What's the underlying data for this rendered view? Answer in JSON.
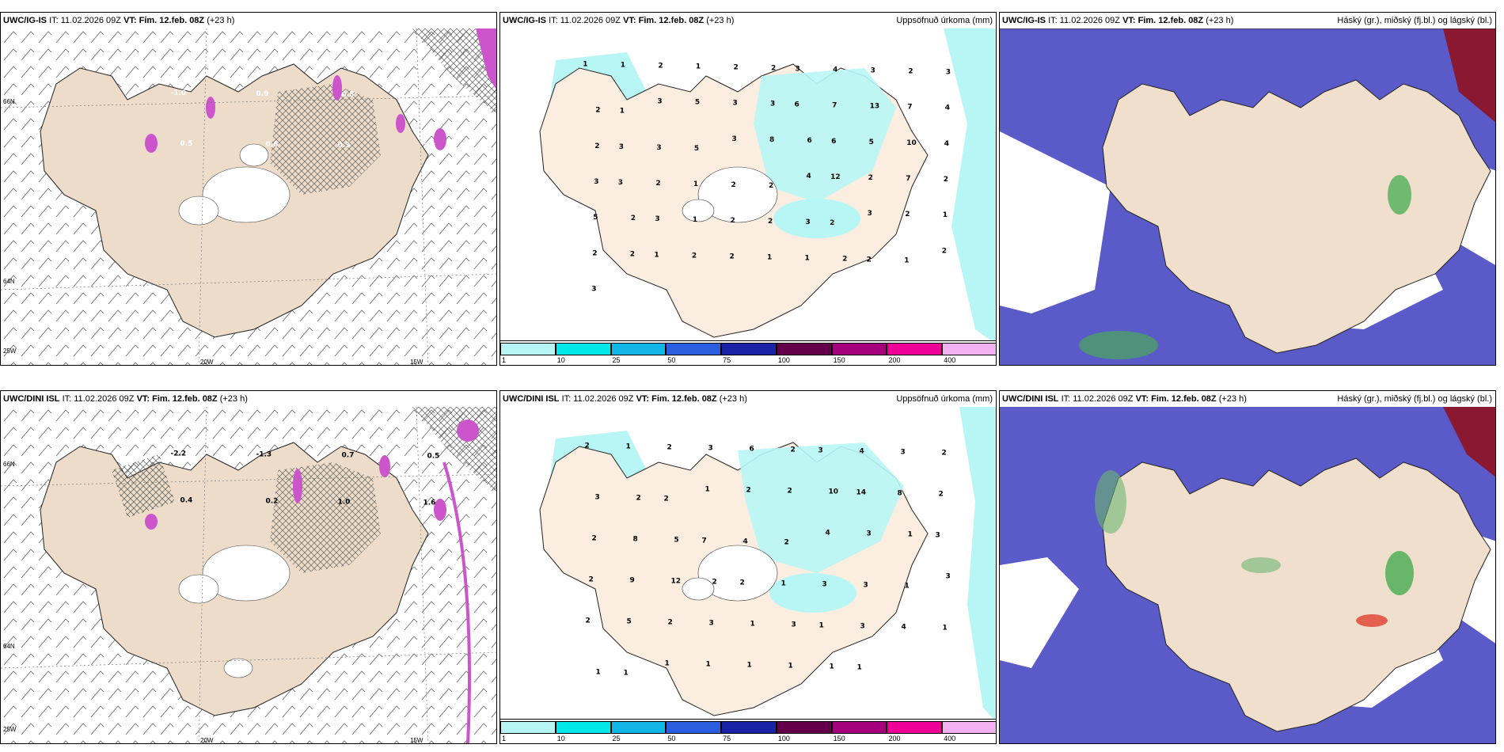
{
  "panels": [
    {
      "model": "UWC/IG-IS",
      "it_label": "IT:",
      "it": "11.02.2026 09Z",
      "vt_label": "VT: Fim. 12.feb. 08Z",
      "lead": "(+23 h)",
      "right_label": ""
    },
    {
      "model": "UWC/IG-IS",
      "it_label": "IT:",
      "it": "11.02.2026 09Z",
      "vt_label": "VT: Fim. 12.feb. 08Z",
      "lead": "(+23 h)",
      "right_label": "Uppsöfnuð úrkoma (mm)"
    },
    {
      "model": "UWC/IG-IS",
      "it_label": "IT:",
      "it": "11.02.2026 09Z",
      "vt_label": "VT: Fim. 12.feb. 08Z",
      "lead": "(+23 h)",
      "right_label": "Háský (gr.), miðský (fj.bl.) og lágský (bl.)"
    },
    {
      "model": "UWC/DINI ISL",
      "it_label": "IT:",
      "it": "11.02.2026 09Z",
      "vt_label": "VT: Fim. 12.feb. 08Z",
      "lead": "(+23 h)",
      "right_label": ""
    },
    {
      "model": "UWC/DINI ISL",
      "it_label": "IT:",
      "it": "11.02.2026 09Z",
      "vt_label": "VT: Fim. 12.feb. 08Z",
      "lead": "(+23 h)",
      "right_label": "Uppsöfnuð úrkoma (mm)"
    },
    {
      "model": "UWC/DINI ISL",
      "it_label": "IT:",
      "it": "11.02.2026 09Z",
      "vt_label": "VT: Fim. 12.feb. 08Z",
      "lead": "(+23 h)",
      "right_label": "Háský (gr.), miðský (fj.bl.) og lágský (bl.)"
    }
  ],
  "axes": {
    "lat_66": "66N",
    "lat_64": "64N",
    "lon_25": "25W",
    "lon_20": "20W",
    "lon_15": "15W"
  },
  "colorbar": {
    "ticks": [
      "1",
      "10",
      "25",
      "50",
      "75",
      "100",
      "150",
      "200",
      "400"
    ],
    "colors": [
      "#b8f6f6",
      "#00e8e8",
      "#12b6e6",
      "#2b5fe0",
      "#1a23a8",
      "#64004a",
      "#a5007c",
      "#ee0099",
      "#f2b2f2"
    ]
  },
  "wind_values_top": [
    "-1.0",
    "0.9",
    "0.5",
    "0.4",
    "0.5",
    "0.6",
    "0.3",
    "1.6"
  ],
  "wind_values_bottom": [
    "-2.2",
    "-1.3",
    "0.7",
    "0.5",
    "0.4",
    "0.2",
    "1.0",
    "1.6"
  ],
  "precip_labels_top": [
    "1",
    "1",
    "2",
    "1",
    "2",
    "2",
    "3",
    "4",
    "3",
    "2",
    "3",
    "2",
    "1",
    "3",
    "5",
    "3",
    "3",
    "6",
    "7",
    "13",
    "7",
    "4",
    "2",
    "3",
    "3",
    "5",
    "3",
    "8",
    "6",
    "6",
    "5",
    "10",
    "4",
    "3",
    "3",
    "2",
    "1",
    "2",
    "2",
    "4",
    "12",
    "2",
    "7",
    "2",
    "5",
    "2",
    "3",
    "1",
    "2",
    "2",
    "3",
    "2",
    "3",
    "2",
    "1",
    "2",
    "2",
    "1",
    "2",
    "2",
    "1",
    "1",
    "2",
    "2",
    "1",
    "2",
    "3"
  ],
  "precip_labels_bottom": [
    "2",
    "1",
    "2",
    "3",
    "6",
    "2",
    "3",
    "4",
    "3",
    "2",
    "3",
    "2",
    "2",
    "1",
    "2",
    "2",
    "10",
    "14",
    "8",
    "2",
    "2",
    "8",
    "5",
    "7",
    "4",
    "2",
    "4",
    "3",
    "1",
    "3",
    "2",
    "9",
    "12",
    "2",
    "2",
    "1",
    "3",
    "3",
    "1",
    "3",
    "2",
    "5",
    "2",
    "3",
    "1",
    "3",
    "1",
    "3",
    "4",
    "1",
    "1",
    "1",
    "1",
    "1",
    "1",
    "1",
    "1",
    "1"
  ]
}
